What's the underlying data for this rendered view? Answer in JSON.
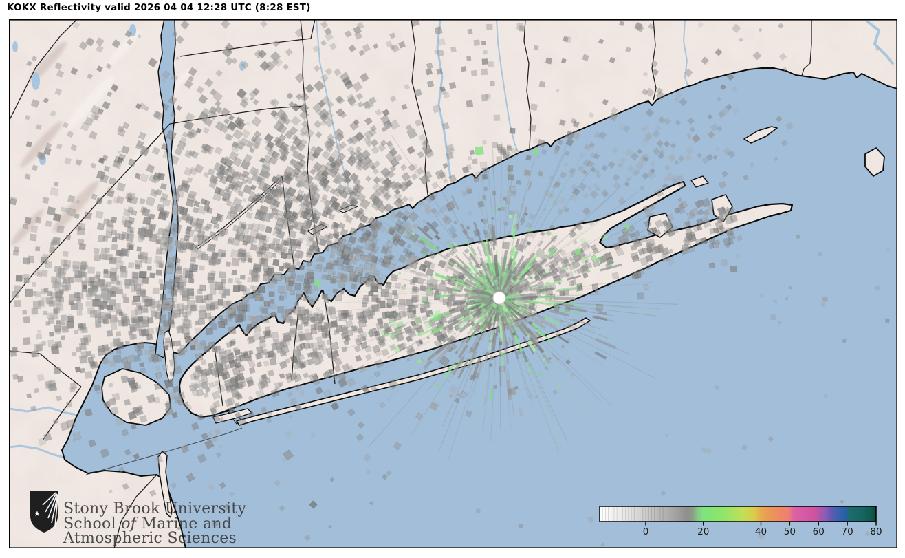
{
  "window": {
    "title": "KOKX Reflectivity valid 2026 04 04 12:28 UTC (8:28 EST)"
  },
  "radar": {
    "site": "KOKX",
    "product": "Reflectivity",
    "marker": "radar-site-white-dot"
  },
  "colorbar": {
    "unit_ticks": [
      0,
      20,
      40,
      50,
      60,
      70,
      80
    ],
    "value_min": -16,
    "value_max": 80,
    "gradient": [
      [
        0,
        "#ffffff"
      ],
      [
        8,
        "#ececec"
      ],
      [
        16.7,
        "#cccccc"
      ],
      [
        23,
        "#b4b4b4"
      ],
      [
        28,
        "#a0a0a0"
      ],
      [
        31.5,
        "#8e8e8e"
      ],
      [
        33.5,
        "#8c9c86"
      ],
      [
        35.5,
        "#89c887"
      ],
      [
        37.5,
        "#7fe47d"
      ],
      [
        42,
        "#86e570"
      ],
      [
        47,
        "#9de463"
      ],
      [
        52,
        "#c3df57"
      ],
      [
        56,
        "#dcca4d"
      ],
      [
        58.3,
        "#e7ab4d"
      ],
      [
        62,
        "#eb9558"
      ],
      [
        65.5,
        "#ee8765"
      ],
      [
        68.5,
        "#ee7f72"
      ],
      [
        69.3,
        "#e66f8e"
      ],
      [
        70.5,
        "#dc60a5"
      ],
      [
        75,
        "#d458a3"
      ],
      [
        78.5,
        "#c9539f"
      ],
      [
        79.6,
        "#ab58ab"
      ],
      [
        81.5,
        "#8e5cb8"
      ],
      [
        83.5,
        "#6a59b1"
      ],
      [
        85,
        "#4a60af"
      ],
      [
        87.5,
        "#2f62ab"
      ],
      [
        89.3,
        "#28609c"
      ],
      [
        90.3,
        "#1d6c6c"
      ],
      [
        95,
        "#156561"
      ],
      [
        98,
        "#115a51"
      ],
      [
        100,
        "#094a3b"
      ]
    ]
  },
  "logo": {
    "line1": "Stony Brook University",
    "line2_prefix": "School ",
    "line2_italic": "of",
    "line2_suffix": " Marine and",
    "line3": "Atmospheric Sciences"
  },
  "colors": {
    "water": "#a3bed8",
    "land": "#ebe1dc",
    "land_light": "#f4ece7",
    "land_shade": "#d9cac3",
    "coast": "#0c0c0c",
    "boundary": "#141414",
    "river": "#a9c6de",
    "echo_gray": "#8d8d8d",
    "echo_green": "#86e184",
    "radar_white": "#ffffff",
    "title_text": "#000000",
    "logo_text": "#3d3d3d"
  }
}
